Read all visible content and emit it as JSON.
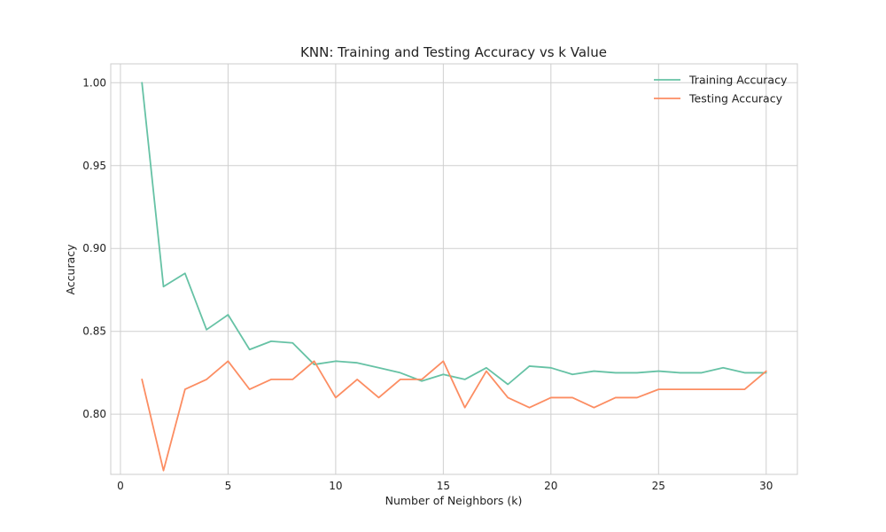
{
  "chart_data": {
    "type": "line",
    "title": "KNN: Training and Testing Accuracy vs k Value",
    "xlabel": "Number of Neighbors (k)",
    "ylabel": "Accuracy",
    "xlim": [
      -0.45,
      31.45
    ],
    "ylim": [
      0.7637,
      1.0114
    ],
    "xticks": [
      0,
      5,
      10,
      15,
      20,
      25,
      30
    ],
    "xtick_labels": [
      "0",
      "5",
      "10",
      "15",
      "20",
      "25",
      "30"
    ],
    "yticks": [
      0.8,
      0.85,
      0.9,
      0.95,
      1.0
    ],
    "ytick_labels": [
      "0.80",
      "0.85",
      "0.90",
      "0.95",
      "1.00"
    ],
    "grid": true,
    "legend_position": "top-right",
    "x": [
      1,
      2,
      3,
      4,
      5,
      6,
      7,
      8,
      9,
      10,
      11,
      12,
      13,
      14,
      15,
      16,
      17,
      18,
      19,
      20,
      21,
      22,
      23,
      24,
      25,
      26,
      27,
      28,
      29,
      30
    ],
    "series": [
      {
        "name": "Training Accuracy",
        "color": "#66c2a5",
        "values": [
          1.0,
          0.877,
          0.885,
          0.851,
          0.86,
          0.839,
          0.844,
          0.843,
          0.83,
          0.832,
          0.831,
          0.828,
          0.825,
          0.82,
          0.824,
          0.821,
          0.828,
          0.818,
          0.829,
          0.828,
          0.824,
          0.826,
          0.825,
          0.825,
          0.826,
          0.825,
          0.825,
          0.828,
          0.825,
          0.825
        ]
      },
      {
        "name": "Testing Accuracy",
        "color": "#fc8d62",
        "values": [
          0.821,
          0.766,
          0.815,
          0.821,
          0.832,
          0.815,
          0.821,
          0.821,
          0.832,
          0.81,
          0.821,
          0.81,
          0.821,
          0.821,
          0.832,
          0.804,
          0.826,
          0.81,
          0.804,
          0.81,
          0.81,
          0.804,
          0.81,
          0.81,
          0.815,
          0.815,
          0.815,
          0.815,
          0.815,
          0.826
        ]
      }
    ]
  }
}
